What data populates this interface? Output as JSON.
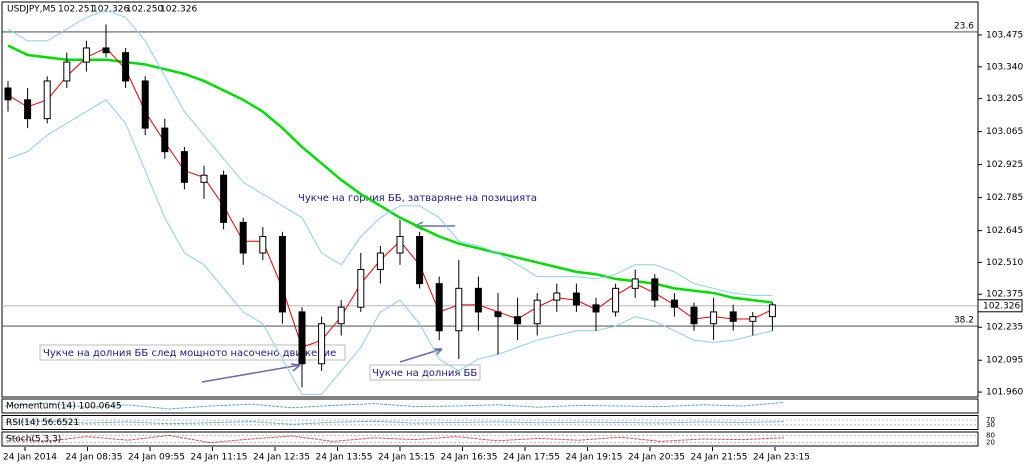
{
  "chart_data": {
    "type": "candlestick",
    "symbol": "USDJPY,M5",
    "header_ohlc": [
      {
        "value": 102.251,
        "label": "102.251"
      },
      {
        "value": 102.326,
        "label": "102.326"
      },
      {
        "value": 102.25,
        "label": "102.250"
      },
      {
        "value": 102.326,
        "label": "102.326"
      }
    ],
    "ylim": [
      101.939,
      103.615
    ],
    "yticks": [
      103.475,
      {
        "value": 103.34,
        "label": "103.340"
      },
      103.205,
      103.065,
      102.925,
      102.785,
      102.645,
      {
        "value": 102.51,
        "label": "102.510"
      },
      102.375,
      102.235,
      102.095,
      {
        "value": 101.96,
        "label": "101.960"
      }
    ],
    "x_labels": [
      "24 Jan 2014",
      "24 Jan 08:35",
      "24 Jan 09:55",
      "24 Jan 11:15",
      "24 Jan 12:35",
      "24 Jan 13:55",
      "24 Jan 15:15",
      "24 Jan 16:35",
      "24 Jan 17:55",
      "24 Jan 19:15",
      "24 Jan 20:35",
      "24 Jan 21:55",
      "24 Jan 23:15"
    ],
    "open": [
      103.25,
      103.2,
      103.12,
      103.28,
      103.36,
      103.42,
      103.4,
      103.28,
      103.08,
      102.98,
      102.85,
      102.88,
      102.68,
      102.55,
      102.62,
      102.3,
      102.08,
      102.25,
      102.32,
      102.48,
      102.55,
      102.62,
      102.42,
      102.22,
      102.4,
      102.3,
      102.28,
      102.25,
      102.35,
      102.38,
      102.33,
      102.3,
      102.4,
      102.44,
      102.35,
      102.32,
      102.25,
      102.3,
      102.26,
      102.28
    ],
    "high": [
      103.28,
      103.25,
      103.3,
      103.4,
      103.45,
      103.52,
      103.42,
      103.3,
      103.12,
      103.0,
      102.92,
      102.9,
      102.7,
      102.66,
      102.64,
      102.32,
      102.28,
      102.35,
      102.55,
      102.58,
      102.69,
      102.64,
      102.45,
      102.52,
      102.45,
      102.38,
      102.36,
      102.38,
      102.42,
      102.42,
      102.36,
      102.42,
      102.48,
      102.46,
      102.38,
      102.34,
      102.36,
      102.33,
      102.3,
      102.34
    ],
    "low": [
      103.15,
      103.08,
      103.1,
      103.25,
      103.32,
      103.38,
      103.25,
      103.05,
      102.95,
      102.82,
      102.78,
      102.65,
      102.5,
      102.52,
      102.25,
      101.98,
      102.05,
      102.2,
      102.3,
      102.42,
      102.5,
      102.4,
      102.18,
      102.1,
      102.22,
      102.12,
      102.18,
      102.2,
      102.3,
      102.3,
      102.22,
      102.28,
      102.36,
      102.32,
      102.28,
      102.22,
      102.18,
      102.22,
      102.2,
      102.22
    ],
    "close": [
      103.2,
      103.12,
      103.28,
      103.36,
      103.42,
      103.4,
      103.28,
      103.08,
      102.98,
      102.85,
      102.88,
      102.68,
      102.55,
      102.62,
      102.3,
      102.08,
      102.25,
      102.32,
      102.48,
      102.55,
      102.62,
      102.42,
      102.22,
      102.4,
      102.3,
      102.28,
      102.25,
      102.35,
      102.38,
      102.33,
      102.3,
      102.4,
      102.44,
      102.35,
      102.32,
      102.25,
      102.3,
      102.26,
      102.28,
      102.33
    ],
    "series": [
      {
        "color": "#00dd00",
        "values": [
          103.43,
          103.39,
          103.38,
          103.37,
          103.37,
          103.37,
          103.36,
          103.35,
          103.33,
          103.31,
          103.28,
          103.24,
          103.2,
          103.15,
          103.08,
          103.0,
          102.93,
          102.86,
          102.8,
          102.75,
          102.7,
          102.66,
          102.62,
          102.59,
          102.57,
          102.55,
          102.53,
          102.51,
          102.49,
          102.47,
          102.46,
          102.44,
          102.43,
          102.42,
          102.4,
          102.39,
          102.38,
          102.36,
          102.35,
          102.34
        ]
      },
      {
        "color": "#e00000",
        "values": [
          103.22,
          103.17,
          103.2,
          103.3,
          103.38,
          103.42,
          103.33,
          103.15,
          103.02,
          102.9,
          102.87,
          102.75,
          102.6,
          102.6,
          102.4,
          102.15,
          102.18,
          102.28,
          102.42,
          102.52,
          102.6,
          102.5,
          102.3,
          102.33,
          102.33,
          102.3,
          102.27,
          102.32,
          102.36,
          102.35,
          102.31,
          102.37,
          102.42,
          102.38,
          102.33,
          102.27,
          102.28,
          102.27,
          102.27,
          102.31
        ]
      },
      {
        "color": "#8ccfee",
        "values": [
          103.5,
          103.45,
          103.45,
          103.5,
          103.55,
          103.58,
          103.55,
          103.45,
          103.3,
          103.15,
          103.05,
          102.95,
          102.85,
          102.8,
          102.75,
          102.7,
          102.55,
          102.5,
          102.62,
          102.7,
          102.75,
          102.75,
          102.7,
          102.6,
          102.58,
          102.55,
          102.5,
          102.45,
          102.45,
          102.45,
          102.44,
          102.46,
          102.5,
          102.5,
          102.47,
          102.42,
          102.4,
          102.38,
          102.37,
          102.37
        ]
      },
      {
        "color": "#8ccfee",
        "values": [
          102.95,
          102.98,
          103.05,
          103.1,
          103.15,
          103.2,
          103.1,
          102.9,
          102.7,
          102.55,
          102.5,
          102.4,
          102.3,
          102.25,
          102.1,
          101.95,
          101.95,
          102.05,
          102.15,
          102.3,
          102.35,
          102.25,
          102.1,
          102.05,
          102.1,
          102.12,
          102.15,
          102.18,
          102.2,
          102.22,
          102.22,
          102.24,
          102.28,
          102.26,
          102.22,
          102.18,
          102.17,
          102.18,
          102.2,
          102.22
        ]
      }
    ],
    "levels": [
      {
        "label": "23.6",
        "value": 103.488
      },
      {
        "label": "38.2",
        "value": 102.24
      }
    ],
    "last_price": 102.326,
    "annotations": [
      "Чукче на горния ББ, затваряне на позицията",
      "Чукче на долния ББ след мощното насочено движение",
      "Чукче на долния ББ"
    ],
    "panels": [
      {
        "label": "Momentum(14) 100.0645",
        "ylim": [
          99.9,
          100.1
        ],
        "color": "#5aa8d8",
        "values": [
          100.0,
          100.05,
          99.98,
          100.02,
          99.95,
          100.0,
          100.03,
          99.97,
          100.01,
          100.04,
          99.99,
          100.0,
          100.02,
          99.98,
          100.01,
          100.0,
          99.99,
          100.02,
          100.0,
          100.06
        ]
      },
      {
        "label": "RSI(14) 56.6521",
        "ylim": [
          0,
          100
        ],
        "yticks": [
          70,
          30
        ],
        "color": "#5aa8d8",
        "values": [
          50,
          62,
          45,
          55,
          40,
          48,
          58,
          35,
          52,
          60,
          45,
          50,
          55,
          48,
          52,
          50,
          46,
          54,
          50,
          57
        ]
      },
      {
        "label": "Stoch(5,3,3)",
        "ylim": [
          0,
          100
        ],
        "yticks": [
          80,
          20
        ],
        "color": "#d05050",
        "values": [
          60,
          30,
          70,
          40,
          80,
          20,
          50,
          75,
          30,
          60,
          45,
          70,
          35,
          55,
          40,
          65,
          30,
          50,
          45,
          60
        ]
      }
    ]
  }
}
